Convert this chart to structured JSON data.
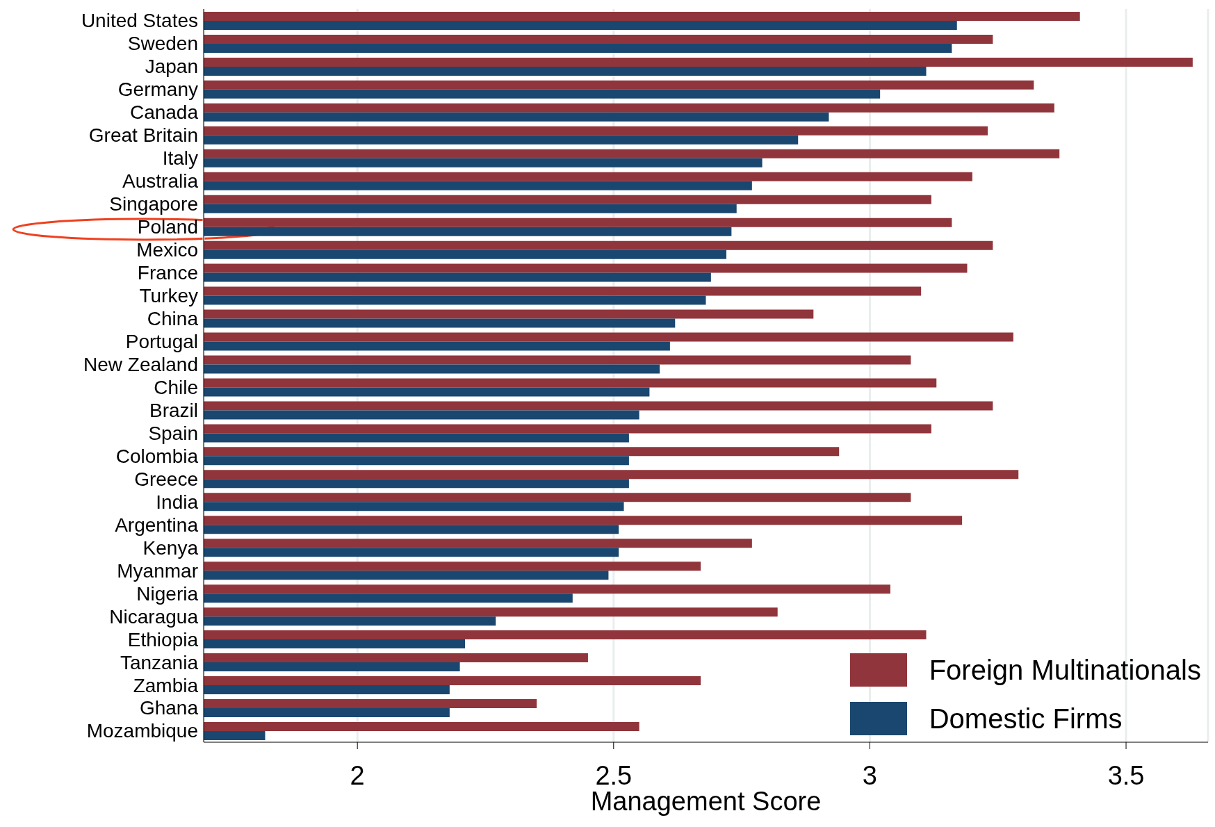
{
  "chart_data": {
    "type": "bar",
    "orientation": "horizontal",
    "xlabel": "Management Score",
    "categories": [
      "United States",
      "Sweden",
      "Japan",
      "Germany",
      "Canada",
      "Great Britain",
      "Italy",
      "Australia",
      "Singapore",
      "Poland",
      "Mexico",
      "France",
      "Turkey",
      "China",
      "Portugal",
      "New Zealand",
      "Chile",
      "Brazil",
      "Spain",
      "Colombia",
      "Greece",
      "India",
      "Argentina",
      "Kenya",
      "Myanmar",
      "Nigeria",
      "Nicaragua",
      "Ethiopia",
      "Tanzania",
      "Zambia",
      "Ghana",
      "Mozambique"
    ],
    "series": [
      {
        "name": "Foreign Multinationals",
        "color": "#90353b",
        "values": [
          3.41,
          3.24,
          3.63,
          3.32,
          3.36,
          3.23,
          3.37,
          3.2,
          3.12,
          3.16,
          3.24,
          3.19,
          3.1,
          2.89,
          3.28,
          3.08,
          3.13,
          3.24,
          3.12,
          2.94,
          3.29,
          3.08,
          3.18,
          2.77,
          2.67,
          3.04,
          2.82,
          3.11,
          2.45,
          2.67,
          2.35,
          2.55
        ]
      },
      {
        "name": "Domestic Firms",
        "color": "#1a476f",
        "values": [
          3.17,
          3.16,
          3.11,
          3.02,
          2.92,
          2.86,
          2.79,
          2.77,
          2.74,
          2.73,
          2.72,
          2.69,
          2.68,
          2.62,
          2.61,
          2.59,
          2.57,
          2.55,
          2.53,
          2.53,
          2.53,
          2.52,
          2.51,
          2.51,
          2.49,
          2.42,
          2.27,
          2.21,
          2.2,
          2.18,
          2.18,
          1.82
        ]
      }
    ],
    "xlim": [
      1.7,
      3.66
    ],
    "xticks": [
      2,
      2.5,
      3,
      3.5
    ],
    "grid": "x",
    "legend": "bottom right"
  }
}
